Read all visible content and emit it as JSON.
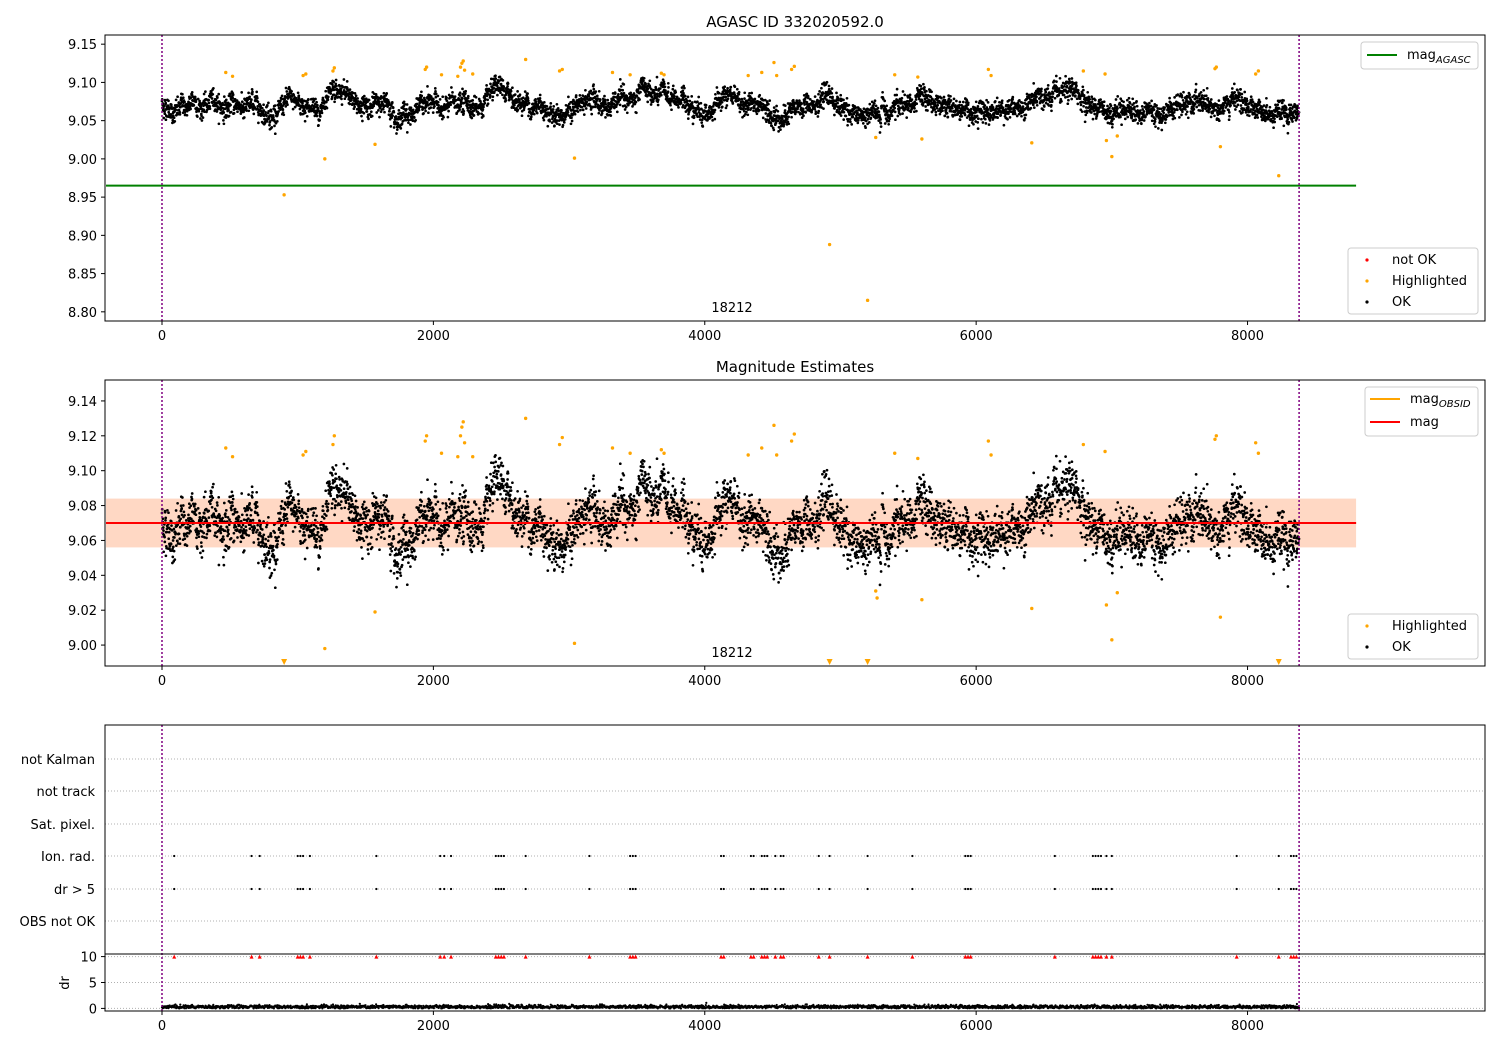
{
  "chart_data": [
    {
      "type": "scatter",
      "title": "AGASC ID 332020592.0",
      "xlim": [
        -420,
        9750
      ],
      "ylim": [
        8.788,
        9.162
      ],
      "xticks": [
        0,
        2000,
        4000,
        6000,
        8000
      ],
      "yticks": [
        8.8,
        8.85,
        8.9,
        8.95,
        9.0,
        9.05,
        9.1,
        9.15
      ],
      "ytick_labels": [
        "8.80",
        "8.85",
        "8.90",
        "8.95",
        "9.00",
        "9.05",
        "9.10",
        "9.15"
      ],
      "obsid_bounds": [
        0,
        8380
      ],
      "obsid_label": {
        "text": "18212",
        "x": 4190,
        "y": 8.795
      },
      "mag_agasc": 8.965,
      "mag_agasc_range": [
        -420,
        8800
      ],
      "ok_band": {
        "center": 9.07,
        "half_width": 0.013,
        "x_range": [
          0,
          8380
        ]
      },
      "highlighted_points": [
        [
          900,
          8.953
        ],
        [
          1200,
          9.0
        ],
        [
          1570,
          9.019
        ],
        [
          3040,
          9.001
        ],
        [
          4920,
          8.888
        ],
        [
          5200,
          8.815
        ],
        [
          5260,
          9.028
        ],
        [
          5600,
          9.026
        ],
        [
          6410,
          9.021
        ],
        [
          6960,
          9.024
        ],
        [
          7000,
          9.003
        ],
        [
          7040,
          9.03
        ],
        [
          7800,
          9.016
        ],
        [
          8230,
          8.978
        ],
        [
          470,
          9.113
        ],
        [
          520,
          9.108
        ],
        [
          1040,
          9.109
        ],
        [
          1060,
          9.111
        ],
        [
          1260,
          9.115
        ],
        [
          1270,
          9.119
        ],
        [
          1940,
          9.117
        ],
        [
          1950,
          9.12
        ],
        [
          2060,
          9.11
        ],
        [
          2180,
          9.108
        ],
        [
          2200,
          9.12
        ],
        [
          2210,
          9.125
        ],
        [
          2220,
          9.128
        ],
        [
          2230,
          9.116
        ],
        [
          2290,
          9.111
        ],
        [
          2680,
          9.13
        ],
        [
          2930,
          9.115
        ],
        [
          2950,
          9.117
        ],
        [
          3320,
          9.113
        ],
        [
          3450,
          9.11
        ],
        [
          3680,
          9.112
        ],
        [
          3700,
          9.11
        ],
        [
          4320,
          9.109
        ],
        [
          4420,
          9.113
        ],
        [
          4510,
          9.126
        ],
        [
          4530,
          9.109
        ],
        [
          4640,
          9.117
        ],
        [
          4660,
          9.121
        ],
        [
          5400,
          9.11
        ],
        [
          5570,
          9.107
        ],
        [
          6090,
          9.117
        ],
        [
          6110,
          9.109
        ],
        [
          6790,
          9.115
        ],
        [
          6950,
          9.111
        ],
        [
          7760,
          9.118
        ],
        [
          7770,
          9.12
        ],
        [
          8060,
          9.111
        ],
        [
          8080,
          9.115
        ]
      ],
      "series": [
        {
          "name": "mag_{AGASC}",
          "color": "#008000"
        },
        {
          "name": "not OK",
          "color": "#ff0000"
        },
        {
          "name": "Highlighted",
          "color": "#ffa500"
        },
        {
          "name": "OK",
          "color": "#000000"
        }
      ],
      "ok_series_summary": {
        "x_range": [
          0,
          8380
        ],
        "typical_center": 9.07
      }
    },
    {
      "type": "scatter",
      "title": "Magnitude Estimates",
      "xlim": [
        -420,
        9750
      ],
      "ylim": [
        8.988,
        9.152
      ],
      "xticks": [
        0,
        2000,
        4000,
        6000,
        8000
      ],
      "yticks": [
        9.0,
        9.02,
        9.04,
        9.06,
        9.08,
        9.1,
        9.12,
        9.14
      ],
      "ytick_labels": [
        "9.00",
        "9.02",
        "9.04",
        "9.06",
        "9.08",
        "9.10",
        "9.12",
        "9.14"
      ],
      "obsid_bounds": [
        0,
        8380
      ],
      "obsid_label": {
        "text": "18212",
        "x": 4190,
        "y": 8.995
      },
      "mag": 9.07,
      "mag_obsid": 9.07,
      "band": {
        "center": 9.07,
        "half_width": 0.014,
        "x_range": [
          -420,
          8800
        ]
      },
      "highlighted_points": [
        [
          1200,
          8.998
        ],
        [
          1570,
          9.019
        ],
        [
          3040,
          9.001
        ],
        [
          5260,
          9.031
        ],
        [
          5270,
          9.027
        ],
        [
          5600,
          9.026
        ],
        [
          6410,
          9.021
        ],
        [
          6960,
          9.023
        ],
        [
          7000,
          9.003
        ],
        [
          7040,
          9.03
        ],
        [
          7800,
          9.016
        ],
        [
          470,
          9.113
        ],
        [
          520,
          9.108
        ],
        [
          1040,
          9.109
        ],
        [
          1060,
          9.111
        ],
        [
          1260,
          9.115
        ],
        [
          1270,
          9.12
        ],
        [
          1940,
          9.117
        ],
        [
          1950,
          9.12
        ],
        [
          2060,
          9.11
        ],
        [
          2180,
          9.108
        ],
        [
          2200,
          9.12
        ],
        [
          2210,
          9.125
        ],
        [
          2220,
          9.128
        ],
        [
          2230,
          9.116
        ],
        [
          2290,
          9.108
        ],
        [
          2680,
          9.13
        ],
        [
          2930,
          9.115
        ],
        [
          2950,
          9.119
        ],
        [
          3320,
          9.113
        ],
        [
          3450,
          9.11
        ],
        [
          3680,
          9.112
        ],
        [
          3700,
          9.11
        ],
        [
          4320,
          9.109
        ],
        [
          4420,
          9.113
        ],
        [
          4510,
          9.126
        ],
        [
          4530,
          9.109
        ],
        [
          4640,
          9.117
        ],
        [
          4660,
          9.121
        ],
        [
          5400,
          9.11
        ],
        [
          5570,
          9.107
        ],
        [
          6090,
          9.117
        ],
        [
          6110,
          9.109
        ],
        [
          6790,
          9.115
        ],
        [
          6950,
          9.111
        ],
        [
          7760,
          9.118
        ],
        [
          7770,
          9.12
        ],
        [
          8060,
          9.116
        ],
        [
          8080,
          9.11
        ]
      ],
      "below_range_markers": [
        900,
        4920,
        5200,
        8230
      ],
      "series": [
        {
          "name": "mag_{OBSID}",
          "color": "#ffa500"
        },
        {
          "name": "mag",
          "color": "#ff0000"
        },
        {
          "name": "Highlighted",
          "color": "#ffa500"
        },
        {
          "name": "OK",
          "color": "#000000"
        }
      ]
    },
    {
      "type": "scatter",
      "title": "",
      "xlim": [
        -420,
        9750
      ],
      "xticks": [
        0,
        2000,
        4000,
        6000,
        8000
      ],
      "flag_rows": [
        "not Kalman",
        "not track",
        "Sat. pixel.",
        "Ion. rad.",
        "dr > 5",
        "OBS not OK"
      ],
      "flag_times": {
        "Ion. rad.": [
          90,
          660,
          720,
          1000,
          1020,
          1040,
          1090,
          1580,
          2050,
          2080,
          2130,
          2460,
          2480,
          2500,
          2520,
          2680,
          3150,
          3450,
          3470,
          3490,
          4120,
          4140,
          4340,
          4360,
          4420,
          4440,
          4460,
          4520,
          4560,
          4580,
          4840,
          4920,
          5200,
          5530,
          5920,
          5940,
          5960,
          6580,
          6860,
          6880,
          6900,
          6920,
          6960,
          7000,
          7920,
          8230,
          8320,
          8340,
          8360
        ],
        "dr > 5": [
          90,
          660,
          720,
          1000,
          1020,
          1040,
          1090,
          1580,
          2050,
          2080,
          2130,
          2460,
          2480,
          2500,
          2520,
          2680,
          3150,
          3450,
          3470,
          3490,
          4120,
          4140,
          4340,
          4360,
          4420,
          4440,
          4460,
          4520,
          4560,
          4580,
          4840,
          4920,
          5200,
          5530,
          5920,
          5940,
          5960,
          6580,
          6860,
          6880,
          6900,
          6920,
          6960,
          7000,
          7920,
          8230,
          8320,
          8340,
          8360
        ]
      },
      "dr_ylabel": "dr",
      "dr_ylim": [
        -0.5,
        10.5
      ],
      "dr_yticks": [
        0,
        5,
        10
      ],
      "dr_clipped_value": 10,
      "dr_typical": 0.3
    }
  ],
  "legends": {
    "top_agasc": "mag",
    "top_agasc_sub": "AGASC",
    "top_status": [
      "not OK",
      "Highlighted",
      "OK"
    ],
    "mid_obsid": "mag",
    "mid_obsid_sub": "OBSID",
    "mid_mag": "mag",
    "mid_status": [
      "Highlighted",
      "OK"
    ]
  }
}
